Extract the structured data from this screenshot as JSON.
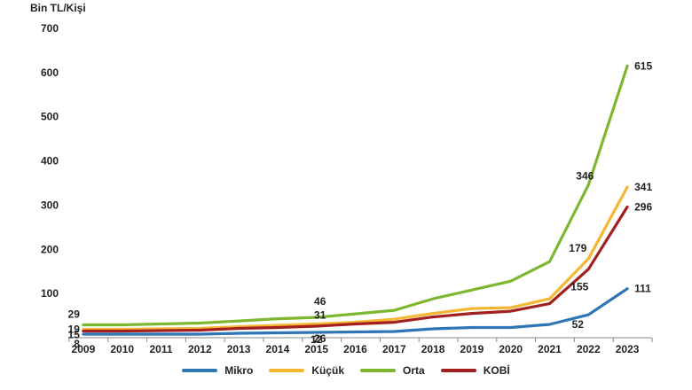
{
  "chart_data": {
    "type": "line",
    "unit_label": "Bin TL/Kişi",
    "x": [
      "2009",
      "2010",
      "2011",
      "2012",
      "2013",
      "2014",
      "2015",
      "2016",
      "2017",
      "2018",
      "2019",
      "2020",
      "2021",
      "2022",
      "2023"
    ],
    "ylim": [
      0,
      700
    ],
    "yticks": [
      {
        "value": 100,
        "label": "100"
      },
      {
        "value": 200,
        "label": "200"
      },
      {
        "value": 300,
        "label": "300"
      },
      {
        "value": 400,
        "label": "400"
      },
      {
        "value": 500,
        "label": "500"
      },
      {
        "value": 600,
        "label": "600"
      },
      {
        "value": 700,
        "label": "700"
      }
    ],
    "grid": false,
    "legend_position": "bottom",
    "series": [
      {
        "name": "Mikro",
        "color": "#2E75B6",
        "values": [
          8,
          8,
          8,
          8,
          10,
          11,
          12,
          13,
          14,
          20,
          23,
          23,
          30,
          52,
          111
        ],
        "labels": [
          {
            "index": 0,
            "text": "8"
          },
          {
            "index": 6,
            "text": "12"
          },
          {
            "index": 13,
            "text": "52"
          },
          {
            "index": 14,
            "text": "111"
          }
        ]
      },
      {
        "name": "Küçük",
        "color": "#F5B731",
        "values": [
          19,
          19,
          20,
          21,
          25,
          28,
          31,
          35,
          42,
          55,
          66,
          68,
          88,
          179,
          341
        ],
        "labels": [
          {
            "index": 0,
            "text": "19"
          },
          {
            "index": 6,
            "text": "31"
          },
          {
            "index": 13,
            "text": "179"
          },
          {
            "index": 14,
            "text": "341"
          }
        ]
      },
      {
        "name": "Orta",
        "color": "#7DB72F",
        "values": [
          29,
          29,
          31,
          33,
          38,
          43,
          46,
          54,
          62,
          88,
          108,
          128,
          172,
          346,
          615
        ],
        "labels": [
          {
            "index": 0,
            "text": "29"
          },
          {
            "index": 6,
            "text": "46"
          },
          {
            "index": 13,
            "text": "346"
          },
          {
            "index": 14,
            "text": "615"
          }
        ]
      },
      {
        "name": "KOBİ",
        "color": "#A31F1F",
        "values": [
          15,
          15,
          16,
          17,
          21,
          23,
          26,
          31,
          35,
          47,
          55,
          60,
          77,
          155,
          296
        ],
        "labels": [
          {
            "index": 0,
            "text": "15"
          },
          {
            "index": 6,
            "text": "26"
          },
          {
            "index": 13,
            "text": "155"
          },
          {
            "index": 14,
            "text": "296"
          }
        ]
      }
    ]
  }
}
